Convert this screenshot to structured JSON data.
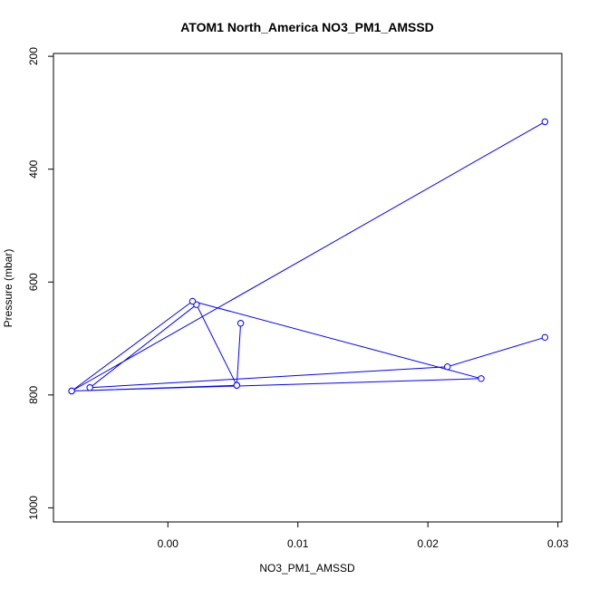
{
  "chart_data": {
    "type": "line",
    "title": "ATOM1 North_America NO3_PM1_AMSSD",
    "xlabel": "NO3_PM1_AMSSD",
    "ylabel": "Pressure (mbar)",
    "xlim": [
      -0.0088,
      0.0303
    ],
    "ylim": [
      1025,
      195
    ],
    "y_inverted": true,
    "xticks": [
      0.0,
      0.01,
      0.02,
      0.03
    ],
    "xtick_labels": [
      "0.00",
      "0.01",
      "0.02",
      "0.03"
    ],
    "yticks": [
      200,
      400,
      600,
      800,
      1000
    ],
    "ytick_labels": [
      "200",
      "400",
      "600",
      "800",
      "1000"
    ],
    "grid": false,
    "legend": "none",
    "series": [
      {
        "color": "#0000ff",
        "marker": "open-circle",
        "x": [
          0.029,
          0.0215,
          -0.006,
          0.0022,
          0.0053,
          0.0056,
          0.0053,
          -0.0074,
          0.0241,
          0.0019,
          -0.0074,
          0.029
        ],
        "y": [
          698,
          750,
          787,
          640,
          783,
          673,
          783,
          793,
          771,
          634,
          793,
          316
        ]
      }
    ]
  }
}
